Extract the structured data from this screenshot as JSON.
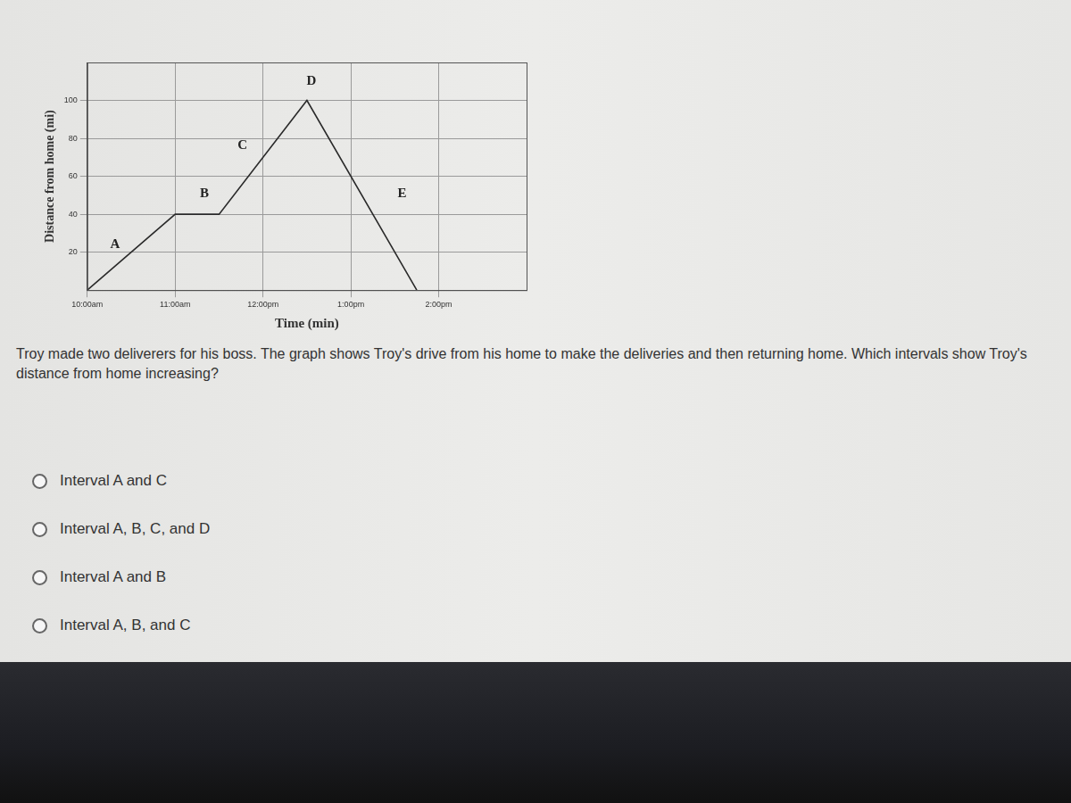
{
  "chart_data": {
    "type": "line",
    "x_label": "Time (min)",
    "y_label": "Distance from home (mi)",
    "x": [
      0,
      60,
      90,
      150,
      225
    ],
    "values": [
      0,
      40,
      40,
      100,
      0
    ],
    "color": "#2b2b2b",
    "xlim": [
      0,
      300
    ],
    "xticks": [
      {
        "value": 0,
        "label": "10:00am"
      },
      {
        "value": 60,
        "label": "11:00am"
      },
      {
        "value": 120,
        "label": "12:00pm"
      },
      {
        "value": 180,
        "label": "1:00pm"
      },
      {
        "value": 240,
        "label": "2:00pm"
      }
    ],
    "ylim": [
      0,
      120
    ],
    "yticks": [
      20,
      40,
      60,
      80,
      100
    ],
    "grid": true,
    "annotations": [
      {
        "text": "A",
        "x": 19,
        "y": 24
      },
      {
        "text": "B",
        "x": 80,
        "y": 51
      },
      {
        "text": "C",
        "x": 106,
        "y": 76
      },
      {
        "text": "D",
        "x": 153,
        "y": 110
      },
      {
        "text": "E",
        "x": 215,
        "y": 51
      }
    ]
  },
  "question": "Troy made two deliverers for his boss. The graph shows Troy's drive from his home to make the deliveries and then returning home. Which intervals show Troy's distance from home increasing?",
  "choices": [
    "Interval A and C",
    "Interval A, B, C, and D",
    "Interval A and B",
    "Interval A, B, and C"
  ]
}
